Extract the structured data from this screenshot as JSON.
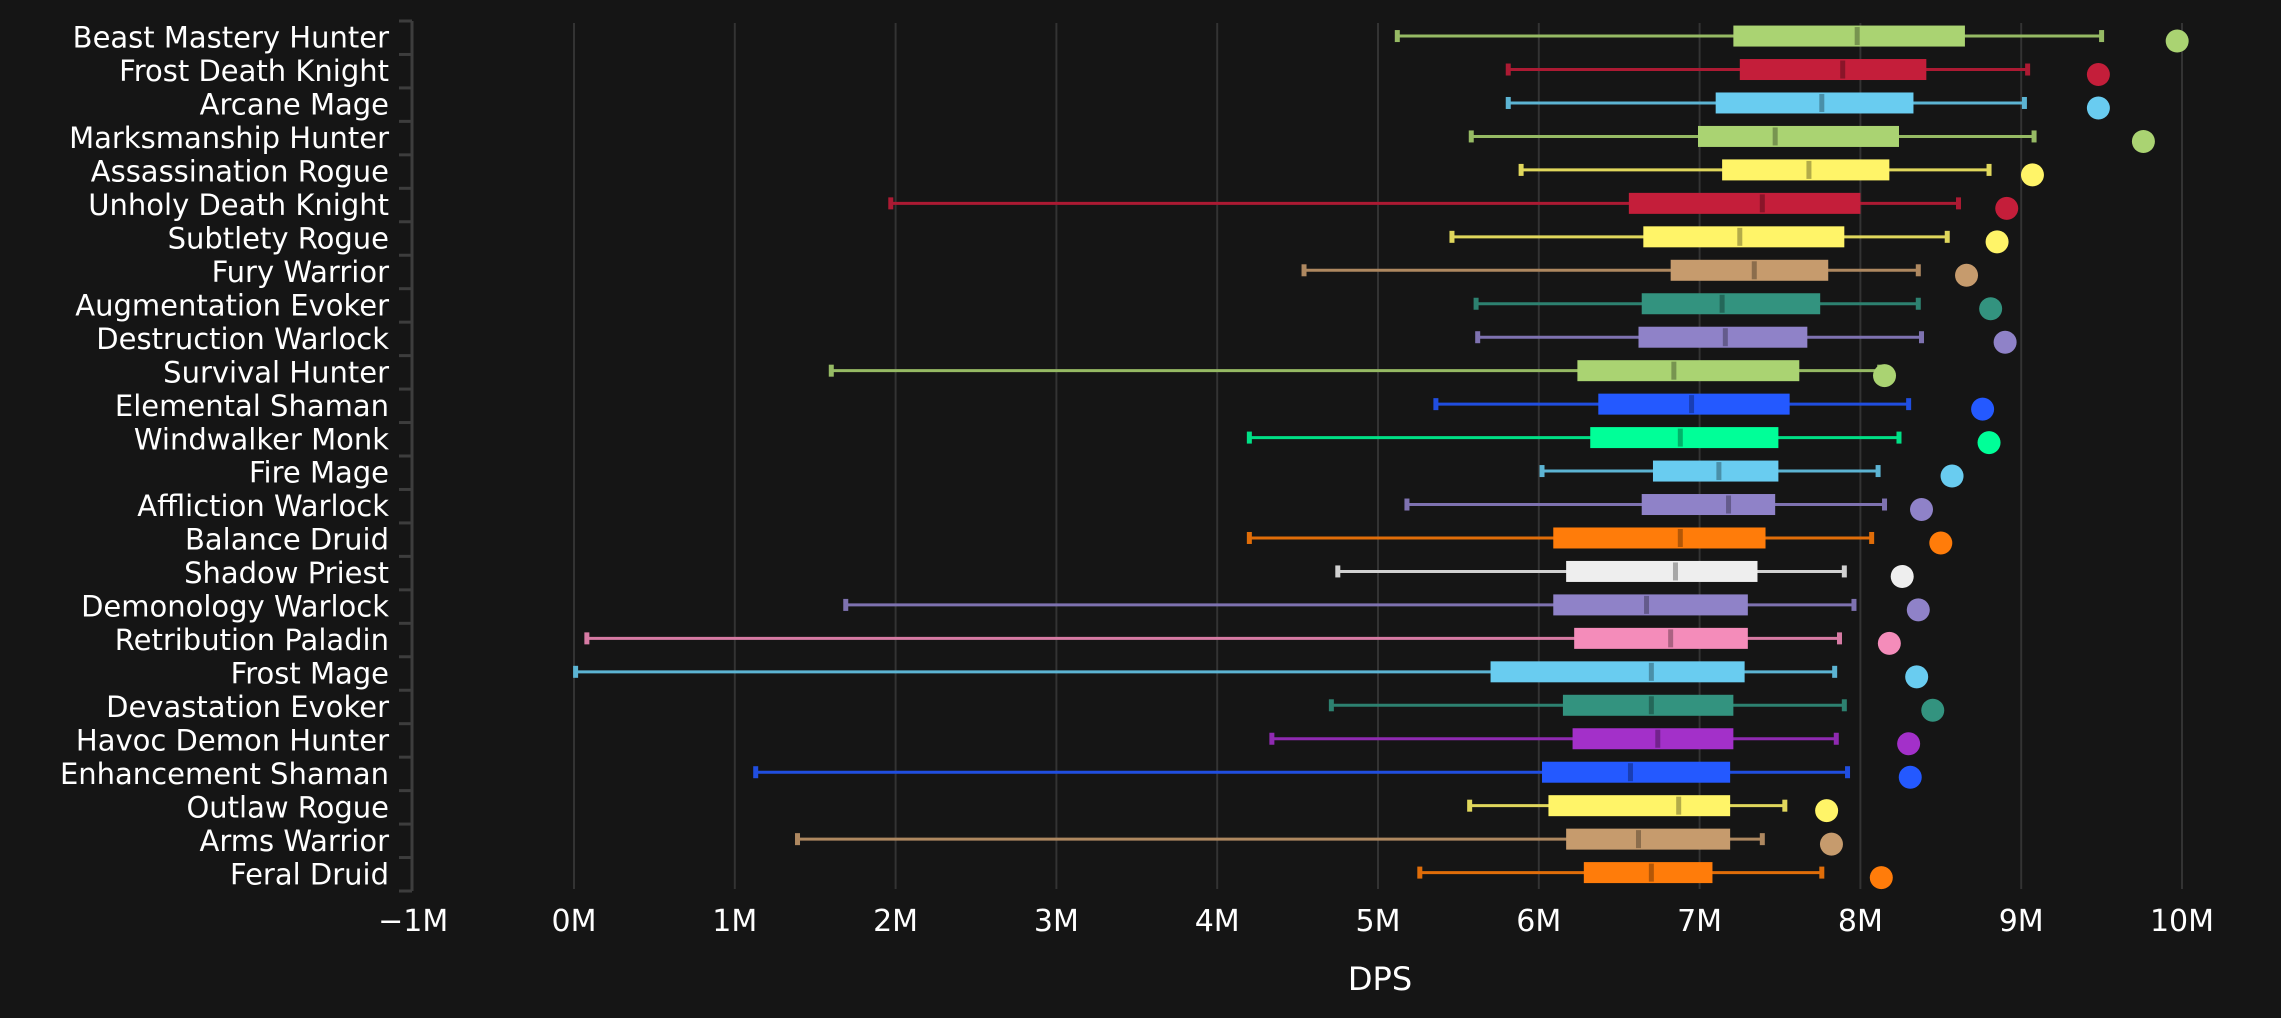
{
  "chart_data": {
    "type": "boxplot",
    "title": "",
    "xlabel": "DPS",
    "ylabel": "",
    "xlim": [
      -1,
      10
    ],
    "x_unit": "M",
    "x_ticks": [
      -1,
      0,
      1,
      2,
      3,
      4,
      5,
      6,
      7,
      8,
      9,
      10
    ],
    "x_tick_labels": [
      "−1M",
      "0M",
      "1M",
      "2M",
      "3M",
      "4M",
      "5M",
      "6M",
      "7M",
      "8M",
      "9M",
      "10M"
    ],
    "grid": "vertical",
    "legend": "none",
    "series_fields": [
      "whisker_low",
      "q1",
      "median",
      "q3",
      "whisker_high",
      "max_point"
    ],
    "specs": [
      {
        "name": "Beast Mastery Hunter",
        "color": "#AAD372",
        "values": [
          5.12,
          7.21,
          7.98,
          8.65,
          9.5,
          9.97
        ]
      },
      {
        "name": "Frost Death Knight",
        "color": "#C41E3A",
        "values": [
          5.81,
          7.25,
          7.89,
          8.41,
          9.04,
          9.48
        ]
      },
      {
        "name": "Arcane Mage",
        "color": "#69CCF0",
        "values": [
          5.81,
          7.1,
          7.76,
          8.33,
          9.02,
          9.48
        ]
      },
      {
        "name": "Marksmanship Hunter",
        "color": "#AAD372",
        "values": [
          5.58,
          6.99,
          7.47,
          8.24,
          9.08,
          9.76
        ]
      },
      {
        "name": "Assassination Rogue",
        "color": "#FFF468",
        "values": [
          5.89,
          7.14,
          7.68,
          8.18,
          8.8,
          9.07
        ]
      },
      {
        "name": "Unholy Death Knight",
        "color": "#C41E3A",
        "values": [
          1.97,
          6.56,
          7.39,
          8.0,
          8.61,
          8.91
        ]
      },
      {
        "name": "Subtlety Rogue",
        "color": "#FFF468",
        "values": [
          5.46,
          6.65,
          7.25,
          7.9,
          8.54,
          8.85
        ]
      },
      {
        "name": "Fury Warrior",
        "color": "#C69B6D",
        "values": [
          4.54,
          6.82,
          7.34,
          7.8,
          8.36,
          8.66
        ]
      },
      {
        "name": "Augmentation Evoker",
        "color": "#33937F",
        "values": [
          5.61,
          6.64,
          7.14,
          7.75,
          8.36,
          8.81
        ]
      },
      {
        "name": "Destruction Warlock",
        "color": "#8F82C8",
        "values": [
          5.62,
          6.62,
          7.16,
          7.67,
          8.38,
          8.9
        ]
      },
      {
        "name": "Survival Hunter",
        "color": "#AAD372",
        "values": [
          1.6,
          6.24,
          6.84,
          7.62,
          8.12,
          8.15
        ]
      },
      {
        "name": "Elemental Shaman",
        "color": "#2459FF",
        "values": [
          5.36,
          6.37,
          6.95,
          7.56,
          8.3,
          8.76
        ]
      },
      {
        "name": "Windwalker Monk",
        "color": "#00FF98",
        "values": [
          4.2,
          6.32,
          6.88,
          7.49,
          8.24,
          8.8
        ]
      },
      {
        "name": "Fire Mage",
        "color": "#69CCF0",
        "values": [
          6.02,
          6.71,
          7.12,
          7.49,
          8.11,
          8.57
        ]
      },
      {
        "name": "Affliction Warlock",
        "color": "#8F82C8",
        "values": [
          5.18,
          6.64,
          7.18,
          7.47,
          8.15,
          8.38
        ]
      },
      {
        "name": "Balance Druid",
        "color": "#FF7C0A",
        "values": [
          4.2,
          6.09,
          6.88,
          7.41,
          8.07,
          8.5
        ]
      },
      {
        "name": "Shadow Priest",
        "color": "#EEEEEE",
        "values": [
          4.75,
          6.17,
          6.85,
          7.36,
          7.9,
          8.26
        ]
      },
      {
        "name": "Demonology Warlock",
        "color": "#8F82C8",
        "values": [
          1.69,
          6.09,
          6.67,
          7.3,
          7.96,
          8.36
        ]
      },
      {
        "name": "Retribution Paladin",
        "color": "#F48CBA",
        "values": [
          0.08,
          6.22,
          6.82,
          7.3,
          7.87,
          8.18
        ]
      },
      {
        "name": "Frost Mage",
        "color": "#69CCF0",
        "values": [
          0.01,
          5.7,
          6.7,
          7.28,
          7.84,
          8.35
        ]
      },
      {
        "name": "Devastation Evoker",
        "color": "#33937F",
        "values": [
          4.71,
          6.15,
          6.7,
          7.21,
          7.9,
          8.45
        ]
      },
      {
        "name": "Havoc Demon Hunter",
        "color": "#A330C9",
        "values": [
          4.34,
          6.21,
          6.74,
          7.21,
          7.85,
          8.3
        ]
      },
      {
        "name": "Enhancement Shaman",
        "color": "#2459FF",
        "values": [
          1.13,
          6.02,
          6.57,
          7.19,
          7.92,
          8.31
        ]
      },
      {
        "name": "Outlaw Rogue",
        "color": "#FFF468",
        "values": [
          5.57,
          6.06,
          6.87,
          7.19,
          7.53,
          7.79
        ]
      },
      {
        "name": "Arms Warrior",
        "color": "#C69B6D",
        "values": [
          1.39,
          6.17,
          6.62,
          7.19,
          7.39,
          7.82
        ]
      },
      {
        "name": "Feral Druid",
        "color": "#FF7C0A",
        "values": [
          5.26,
          6.28,
          6.7,
          7.08,
          7.76,
          8.13
        ]
      }
    ]
  },
  "theme": {
    "background": "#151515",
    "grid_color": "#333333",
    "axis_color": "#3d3d3d",
    "text_color": "#ffffff"
  }
}
